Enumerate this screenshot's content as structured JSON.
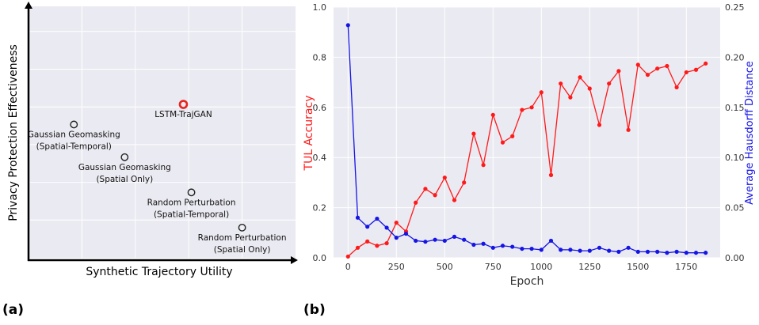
{
  "panel_a": {
    "label": "(a)",
    "ylabel": "Privacy Protection Effectiveness",
    "xlabel": "Synthetic Trajectory Utility"
  },
  "panel_b": {
    "label": "(b)"
  },
  "chart_data": [
    {
      "type": "scatter",
      "panel": "(a)",
      "xlabel": "Synthetic Trajectory Utility",
      "ylabel": "Privacy Protection Effectiveness",
      "xlim": [
        0,
        1
      ],
      "ylim": [
        0,
        1
      ],
      "grid": true,
      "points": [
        {
          "label_lines": [
            "LSTM-TrajGAN"
          ],
          "x": 0.58,
          "y": 0.61,
          "color": "#e8231c",
          "highlight": true,
          "label_pos": "below"
        },
        {
          "label_lines": [
            "Gaussian Geomasking",
            "(Spatial-Temporal)"
          ],
          "x": 0.17,
          "y": 0.53,
          "color": "#222222",
          "highlight": false,
          "label_pos": "below"
        },
        {
          "label_lines": [
            "Gaussian Geomasking",
            "(Spatial Only)"
          ],
          "x": 0.36,
          "y": 0.4,
          "color": "#222222",
          "highlight": false,
          "label_pos": "below"
        },
        {
          "label_lines": [
            "Random Perturbation",
            "(Spatial-Temporal)"
          ],
          "x": 0.61,
          "y": 0.26,
          "color": "#222222",
          "highlight": false,
          "label_pos": "below"
        },
        {
          "label_lines": [
            "Random Perturbation",
            "(Spatial Only)"
          ],
          "x": 0.8,
          "y": 0.12,
          "color": "#222222",
          "highlight": false,
          "label_pos": "below"
        }
      ]
    },
    {
      "type": "line",
      "panel": "(b)",
      "xlabel": "Epoch",
      "xlim": [
        -75,
        1925
      ],
      "xticks": [
        0,
        250,
        500,
        750,
        1000,
        1250,
        1500,
        1750
      ],
      "grid": true,
      "series": [
        {
          "name": "TUL Accuracy",
          "axis": "left",
          "color": "#ff1a1a",
          "ylim": [
            0,
            1.0
          ],
          "yticks": [
            "0.0",
            "0.2",
            "0.4",
            "0.6",
            "0.8",
            "1.0"
          ],
          "x": [
            0,
            50,
            100,
            150,
            200,
            250,
            300,
            350,
            400,
            450,
            500,
            550,
            600,
            650,
            700,
            750,
            800,
            850,
            900,
            950,
            1000,
            1050,
            1100,
            1150,
            1200,
            1250,
            1300,
            1350,
            1400,
            1450,
            1500,
            1550,
            1600,
            1650,
            1700,
            1750,
            1800,
            1850
          ],
          "y": [
            0.005,
            0.04,
            0.065,
            0.048,
            0.058,
            0.14,
            0.105,
            0.22,
            0.275,
            0.25,
            0.32,
            0.23,
            0.3,
            0.495,
            0.37,
            0.57,
            0.46,
            0.485,
            0.59,
            0.6,
            0.66,
            0.33,
            0.695,
            0.64,
            0.72,
            0.675,
            0.53,
            0.695,
            0.745,
            0.51,
            0.77,
            0.73,
            0.755,
            0.765,
            0.68,
            0.74,
            0.75,
            0.775
          ]
        },
        {
          "name": "Average Hausdorff Distance",
          "axis": "right",
          "color": "#1414e6",
          "ylim": [
            0,
            0.25
          ],
          "yticks": [
            "0.00",
            "0.05",
            "0.10",
            "0.15",
            "0.20",
            "0.25"
          ],
          "x": [
            0,
            50,
            100,
            150,
            200,
            250,
            300,
            350,
            400,
            450,
            500,
            550,
            600,
            650,
            700,
            750,
            800,
            850,
            900,
            950,
            1000,
            1050,
            1100,
            1150,
            1200,
            1250,
            1300,
            1350,
            1400,
            1450,
            1500,
            1550,
            1600,
            1650,
            1700,
            1750,
            1800,
            1850
          ],
          "y": [
            0.232,
            0.04,
            0.031,
            0.039,
            0.03,
            0.02,
            0.024,
            0.017,
            0.016,
            0.018,
            0.017,
            0.021,
            0.018,
            0.013,
            0.014,
            0.01,
            0.012,
            0.011,
            0.009,
            0.009,
            0.008,
            0.017,
            0.008,
            0.008,
            0.007,
            0.007,
            0.01,
            0.007,
            0.006,
            0.01,
            0.006,
            0.006,
            0.006,
            0.005,
            0.006,
            0.005,
            0.005,
            0.005
          ]
        }
      ]
    }
  ]
}
